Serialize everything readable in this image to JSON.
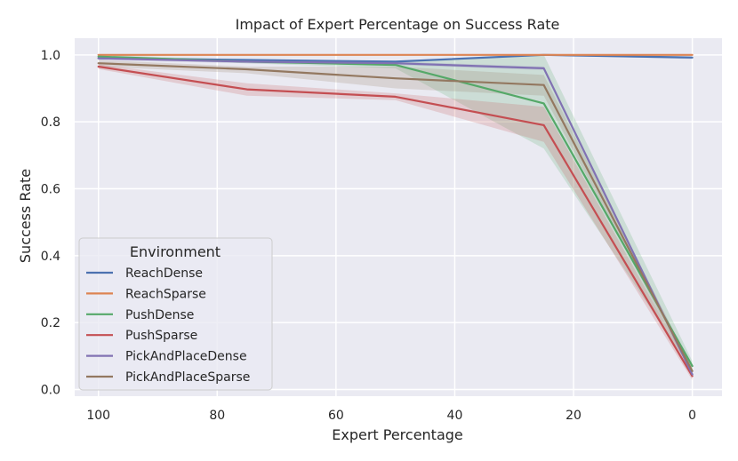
{
  "chart_data": {
    "type": "line",
    "title": "Impact of Expert Percentage on Success Rate",
    "xlabel": "Expert Percentage",
    "ylabel": "Success Rate",
    "x": [
      100,
      75,
      50,
      25,
      0
    ],
    "xlim": [
      104,
      -5
    ],
    "ylim": [
      -0.02,
      1.05
    ],
    "xticks": [
      100,
      80,
      60,
      40,
      20,
      0
    ],
    "yticks": [
      0.0,
      0.2,
      0.4,
      0.6,
      0.8,
      1.0
    ],
    "xtick_labels": [
      "100",
      "80",
      "60",
      "40",
      "20",
      "0"
    ],
    "ytick_labels": [
      "0.0",
      "0.2",
      "0.4",
      "0.6",
      "0.8",
      "1.0"
    ],
    "grid": true,
    "legend": {
      "title": "Environment",
      "location": "lower-left"
    },
    "series": [
      {
        "name": "ReachDense",
        "color": "#4c72b0",
        "values": [
          0.99,
          0.985,
          0.98,
          1.0,
          0.992
        ],
        "lower": [
          0.988,
          0.983,
          0.978,
          0.999,
          0.988
        ],
        "upper": [
          0.992,
          0.987,
          0.982,
          1.0,
          0.996
        ]
      },
      {
        "name": "ReachSparse",
        "color": "#dd8452",
        "values": [
          1.0,
          1.0,
          1.0,
          1.0,
          1.0
        ],
        "lower": [
          0.999,
          0.999,
          0.999,
          0.999,
          0.999
        ],
        "upper": [
          1.0,
          1.0,
          1.0,
          1.0,
          1.0
        ]
      },
      {
        "name": "PushDense",
        "color": "#55a868",
        "values": [
          0.995,
          0.98,
          0.97,
          0.855,
          0.07
        ],
        "lower": [
          0.99,
          0.975,
          0.96,
          0.72,
          0.055
        ],
        "upper": [
          1.0,
          0.985,
          0.98,
          1.0,
          0.085
        ]
      },
      {
        "name": "PushSparse",
        "color": "#c44e52",
        "values": [
          0.965,
          0.897,
          0.875,
          0.79,
          0.04
        ],
        "lower": [
          0.958,
          0.878,
          0.865,
          0.74,
          0.028
        ],
        "upper": [
          0.972,
          0.915,
          0.885,
          0.845,
          0.052
        ]
      },
      {
        "name": "PickAndPlaceDense",
        "color": "#8172b3",
        "values": [
          0.99,
          0.98,
          0.975,
          0.96,
          0.045
        ],
        "lower": [
          0.985,
          0.975,
          0.97,
          0.955,
          0.04
        ],
        "upper": [
          0.995,
          0.985,
          0.98,
          0.965,
          0.05
        ]
      },
      {
        "name": "PickAndPlaceSparse",
        "color": "#937860",
        "values": [
          0.975,
          0.957,
          0.93,
          0.91,
          0.055
        ],
        "lower": [
          0.965,
          0.945,
          0.9,
          0.878,
          0.045
        ],
        "upper": [
          0.985,
          0.965,
          0.965,
          0.94,
          0.065
        ]
      }
    ]
  }
}
